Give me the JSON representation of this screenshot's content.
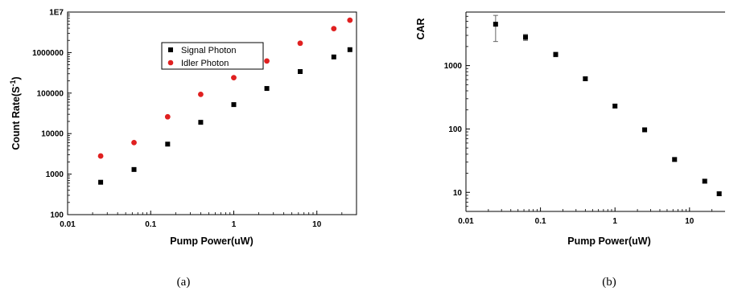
{
  "chart_data": [
    {
      "type": "scatter",
      "title": "",
      "xlabel": "Pump Power(uW)",
      "ylabel_main": "Count Rate(S",
      "ylabel_sup": "-1",
      "ylabel_end": ")",
      "x_scale": "log",
      "y_scale": "log",
      "xlim": [
        0.01,
        30
      ],
      "ylim": [
        100,
        10000000
      ],
      "xticks": [
        0.01,
        0.1,
        1,
        10
      ],
      "xtick_labels": [
        "0.01",
        "0.1",
        "1",
        "10"
      ],
      "yticks": [
        100,
        1000,
        10000,
        100000,
        1000000,
        10000000
      ],
      "ytick_labels": [
        "100",
        "1000",
        "10000",
        "100000",
        "1000000",
        "1E7"
      ],
      "grid": false,
      "legend_position": "upper-center",
      "caption": "(a)",
      "series": [
        {
          "name": "Signal Photon",
          "marker": "square",
          "color": "#000000",
          "x": [
            0.025,
            0.063,
            0.16,
            0.4,
            1.0,
            2.5,
            6.3,
            16,
            25
          ],
          "y": [
            630,
            1300,
            5500,
            19000,
            52000,
            130000,
            340000,
            780000,
            1180000
          ]
        },
        {
          "name": "Idler Photon",
          "marker": "circle",
          "color": "#e02020",
          "x": [
            0.025,
            0.063,
            0.16,
            0.4,
            1.0,
            2.5,
            6.3,
            16,
            25
          ],
          "y": [
            2800,
            6000,
            26000,
            93000,
            240000,
            620000,
            1700000,
            3900000,
            6300000
          ]
        }
      ]
    },
    {
      "type": "scatter",
      "title": "",
      "xlabel": "Pump Power(uW)",
      "ylabel": "CAR",
      "x_scale": "log",
      "y_scale": "log",
      "xlim": [
        0.01,
        30
      ],
      "ylim": [
        5,
        7000
      ],
      "xticks": [
        0.01,
        0.1,
        1,
        10
      ],
      "xtick_labels": [
        "0.01",
        "0.1",
        "1",
        "10"
      ],
      "yticks": [
        10,
        100,
        1000
      ],
      "ytick_labels": [
        "10",
        "100",
        "1000"
      ],
      "grid": false,
      "caption": "(b)",
      "series": [
        {
          "marker": "square",
          "color": "#000000",
          "x": [
            0.025,
            0.063,
            0.16,
            0.4,
            1.0,
            2.5,
            6.3,
            16,
            25
          ],
          "y": [
            4500,
            2800,
            1500,
            620,
            230,
            97,
            33,
            15,
            9.5
          ],
          "yerr_low": [
            2100,
            300,
            120,
            40,
            15,
            5,
            2,
            1,
            0.6
          ],
          "yerr_high": [
            1700,
            300,
            120,
            40,
            15,
            5,
            2,
            1,
            0.6
          ]
        }
      ]
    }
  ]
}
